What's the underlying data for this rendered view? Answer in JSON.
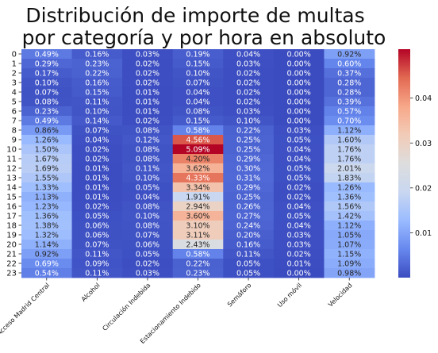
{
  "title_lines": [
    "Distribución de importe de multas",
    "por categoría y por hora en absoluto"
  ],
  "chart_data": {
    "type": "heatmap",
    "title": "Distribución de importe de multas por categoría y por hora en absoluto",
    "xlabel": "",
    "ylabel": "",
    "columns": [
      "Acceso Madrid Central",
      "Alcohol",
      "Circulación Indebida",
      "Estacionamiento Indebido",
      "Semáforo",
      "Uso móvil",
      "Velocidad"
    ],
    "rows": [
      "0",
      "1",
      "2",
      "3",
      "4",
      "5",
      "6",
      "7",
      "8",
      "9",
      "10",
      "11",
      "12",
      "13",
      "14",
      "15",
      "16",
      "17",
      "18",
      "19",
      "20",
      "21",
      "22",
      "23"
    ],
    "values": [
      [
        0.0049,
        0.0016,
        0.0003,
        0.0019,
        0.0004,
        0.0,
        0.0092
      ],
      [
        0.0029,
        0.0023,
        0.0002,
        0.0015,
        0.0003,
        0.0,
        0.006
      ],
      [
        0.0017,
        0.0022,
        0.0002,
        0.001,
        0.0002,
        0.0,
        0.0037
      ],
      [
        0.001,
        0.0016,
        0.0002,
        0.0007,
        0.0002,
        0.0,
        0.0028
      ],
      [
        0.0007,
        0.0015,
        0.0001,
        0.0004,
        0.0002,
        0.0,
        0.0028
      ],
      [
        0.0008,
        0.0011,
        0.0001,
        0.0004,
        0.0002,
        0.0,
        0.0039
      ],
      [
        0.0023,
        0.001,
        0.0001,
        0.0008,
        0.0003,
        0.0,
        0.0057
      ],
      [
        0.0049,
        0.0014,
        0.0002,
        0.0015,
        0.001,
        0.0,
        0.007
      ],
      [
        0.0086,
        0.0007,
        0.0008,
        0.0058,
        0.0022,
        0.0003,
        0.0112
      ],
      [
        0.0126,
        0.0004,
        0.0012,
        0.0456,
        0.0025,
        0.0005,
        0.016
      ],
      [
        0.015,
        0.0002,
        0.0008,
        0.0509,
        0.0025,
        0.0004,
        0.0176
      ],
      [
        0.0167,
        0.0002,
        0.0008,
        0.042,
        0.0029,
        0.0004,
        0.0176
      ],
      [
        0.0169,
        0.0001,
        0.0011,
        0.0362,
        0.003,
        0.0005,
        0.0201
      ],
      [
        0.0155,
        0.0001,
        0.001,
        0.0433,
        0.0031,
        0.0005,
        0.0183
      ],
      [
        0.0133,
        0.0001,
        0.0005,
        0.0334,
        0.0029,
        0.0002,
        0.0126
      ],
      [
        0.0113,
        0.0001,
        0.0004,
        0.0191,
        0.0025,
        0.0002,
        0.0136
      ],
      [
        0.0123,
        0.0002,
        0.0008,
        0.0294,
        0.0026,
        0.0004,
        0.0156
      ],
      [
        0.0136,
        0.0005,
        0.001,
        0.036,
        0.0027,
        0.0005,
        0.0142
      ],
      [
        0.0138,
        0.0006,
        0.0008,
        0.031,
        0.0024,
        0.0004,
        0.0112
      ],
      [
        0.0132,
        0.0006,
        0.0007,
        0.0311,
        0.002,
        0.0003,
        0.0105
      ],
      [
        0.0114,
        0.0007,
        0.0006,
        0.0243,
        0.0016,
        0.0003,
        0.0107
      ],
      [
        0.0092,
        0.0011,
        0.0005,
        0.0058,
        0.0011,
        0.0002,
        0.0115
      ],
      [
        0.0069,
        0.0009,
        0.0002,
        0.0022,
        0.0005,
        0.0001,
        0.0109
      ],
      [
        0.0054,
        0.0011,
        0.0003,
        0.0023,
        0.0005,
        0.0,
        0.0098
      ]
    ],
    "value_range": [
      0,
      0.0509
    ],
    "annotations": "percent, 2 decimals",
    "colormap": "coolwarm",
    "colormap_stops": [
      "#3b4cc0",
      "#6788ee",
      "#9abbff",
      "#c9d7f0",
      "#dddddd",
      "#f2cbb7",
      "#f7a789",
      "#e26952",
      "#b40426"
    ],
    "colorbar": {
      "ticks": [
        0.01,
        0.02,
        0.03,
        0.04
      ],
      "tick_labels": [
        "0.01",
        "0.02",
        "0.03",
        "0.04"
      ]
    }
  }
}
